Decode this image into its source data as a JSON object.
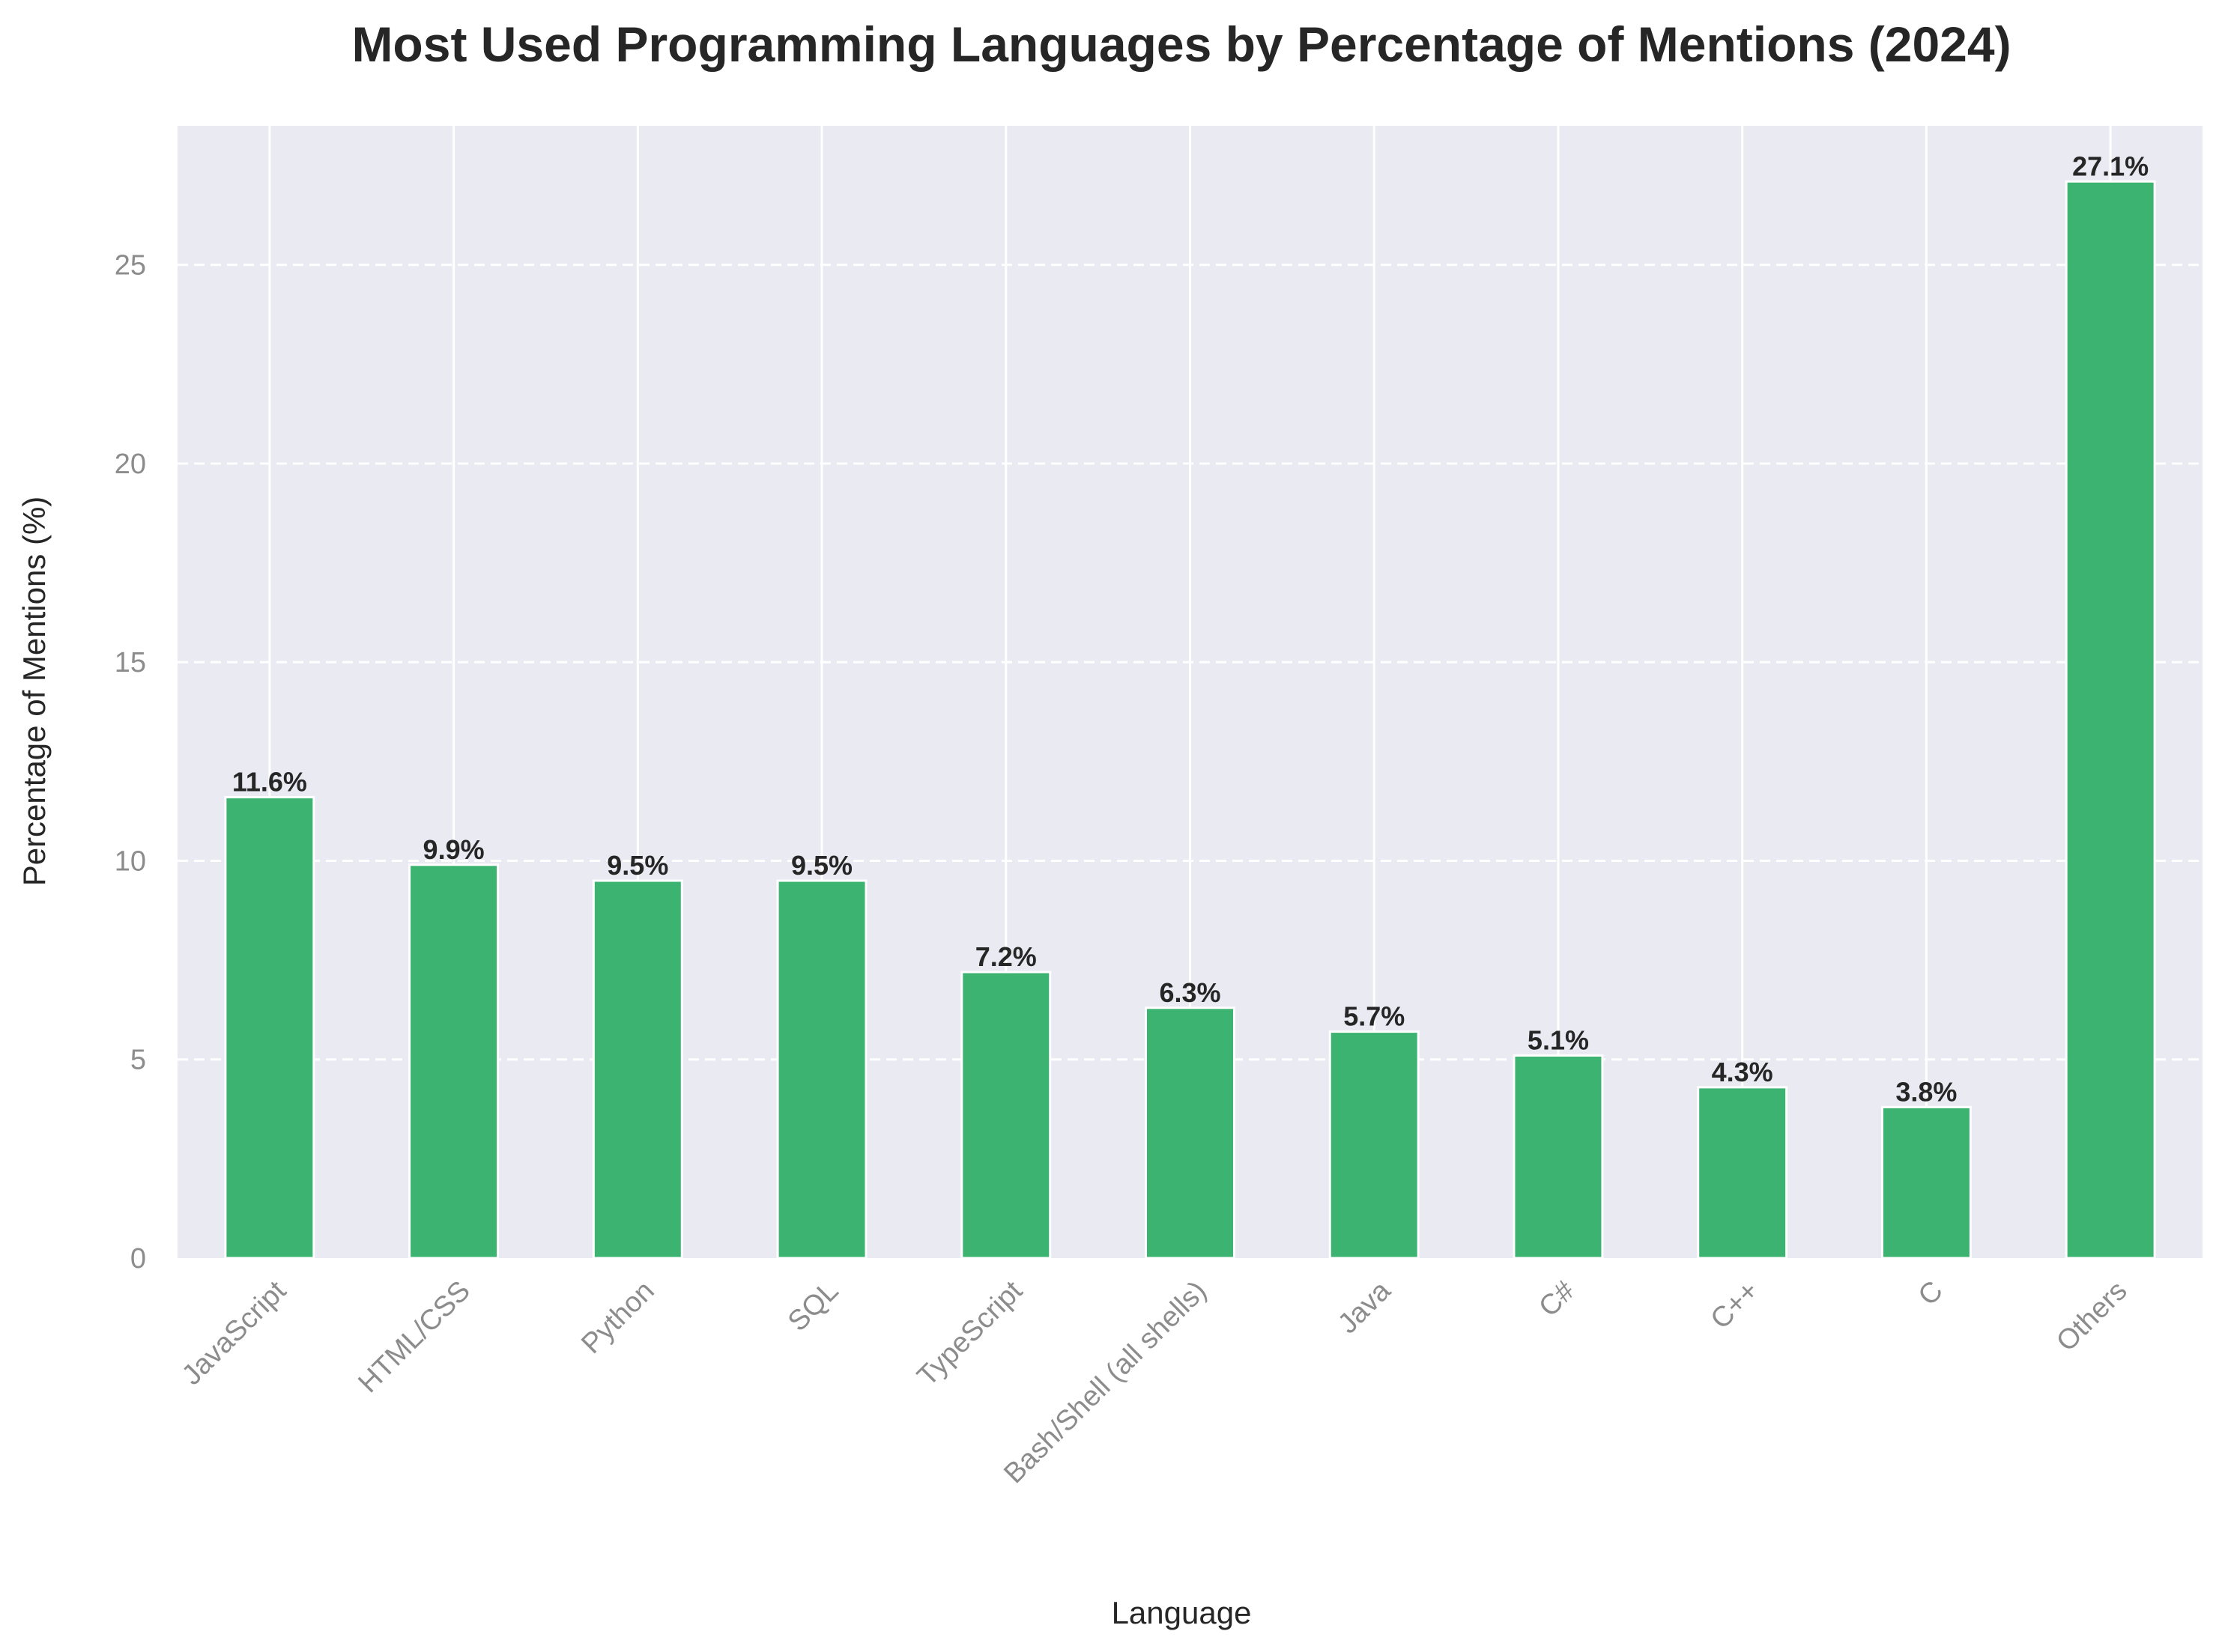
{
  "chart_data": {
    "type": "bar",
    "title": "Most Used Programming Languages by Percentage of Mentions (2024)",
    "xlabel": "Language",
    "ylabel": "Percentage of Mentions (%)",
    "categories": [
      "JavaScript",
      "HTML/CSS",
      "Python",
      "SQL",
      "TypeScript",
      "Bash/Shell (all shells)",
      "Java",
      "C#",
      "C++",
      "C",
      "Others"
    ],
    "values": [
      11.6,
      9.9,
      9.5,
      9.5,
      7.2,
      6.3,
      5.7,
      5.1,
      4.3,
      3.8,
      27.1
    ],
    "value_labels": [
      "11.6%",
      "9.9%",
      "9.5%",
      "9.5%",
      "7.2%",
      "6.3%",
      "5.7%",
      "5.1%",
      "4.3%",
      "3.8%",
      "27.1%"
    ],
    "ylim": [
      0,
      28.5
    ],
    "yticks": [
      0,
      5,
      10,
      15,
      20,
      25
    ],
    "grid": true,
    "colors": {
      "bar": "#3cb371",
      "background": "#eaeaf2",
      "grid": "#ffffff"
    }
  }
}
